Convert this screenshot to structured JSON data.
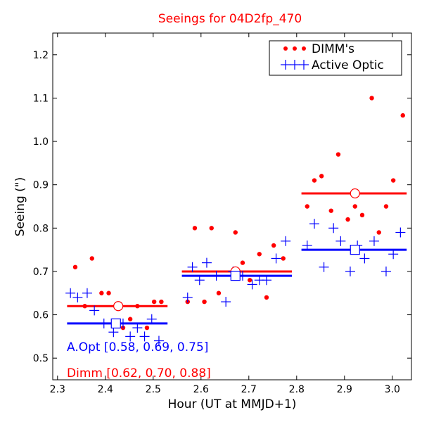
{
  "chart_data": {
    "type": "scatter",
    "title": "Seeings for 04D2fp_470",
    "xlabel": "Hour (UT at MMJD+1)",
    "ylabel": "Seeing (\")",
    "xlim": [
      2.29,
      3.04
    ],
    "ylim": [
      0.45,
      1.25
    ],
    "xticks": [
      "2.3",
      "2.4",
      "2.5",
      "2.6",
      "2.7",
      "2.8",
      "2.9",
      "3.0"
    ],
    "xtick_values": [
      2.3,
      2.4,
      2.5,
      2.6,
      2.7,
      2.8,
      2.9,
      3.0
    ],
    "yticks": [
      "0.5",
      "0.6",
      "0.7",
      "0.8",
      "0.9",
      "1.0",
      "1.1",
      "1.2"
    ],
    "ytick_values": [
      0.5,
      0.6,
      0.7,
      0.8,
      0.9,
      1.0,
      1.1,
      1.2
    ],
    "grid": false,
    "legend_position": "top-right",
    "colors": {
      "dimm": "#ff0000",
      "optic": "#0000ff",
      "title": "#ff0000"
    },
    "series": [
      {
        "name": "DIMM's",
        "marker": "dot",
        "color": "#ff0000",
        "points": [
          [
            2.337,
            0.71
          ],
          [
            2.357,
            0.62
          ],
          [
            2.372,
            0.73
          ],
          [
            2.392,
            0.65
          ],
          [
            2.407,
            0.65
          ],
          [
            2.437,
            0.57
          ],
          [
            2.452,
            0.59
          ],
          [
            2.467,
            0.62
          ],
          [
            2.487,
            0.57
          ],
          [
            2.502,
            0.63
          ],
          [
            2.517,
            0.63
          ],
          [
            2.572,
            0.63
          ],
          [
            2.587,
            0.8
          ],
          [
            2.607,
            0.63
          ],
          [
            2.622,
            0.8
          ],
          [
            2.637,
            0.65
          ],
          [
            2.672,
            0.79
          ],
          [
            2.687,
            0.72
          ],
          [
            2.702,
            0.68
          ],
          [
            2.722,
            0.74
          ],
          [
            2.737,
            0.64
          ],
          [
            2.752,
            0.76
          ],
          [
            2.772,
            0.73
          ],
          [
            2.822,
            0.85
          ],
          [
            2.837,
            0.91
          ],
          [
            2.852,
            0.92
          ],
          [
            2.872,
            0.84
          ],
          [
            2.887,
            0.97
          ],
          [
            2.907,
            0.82
          ],
          [
            2.922,
            0.85
          ],
          [
            2.937,
            0.83
          ],
          [
            2.957,
            1.1
          ],
          [
            2.972,
            0.79
          ],
          [
            2.987,
            0.85
          ],
          [
            3.002,
            0.91
          ],
          [
            3.022,
            1.06
          ]
        ]
      },
      {
        "name": "Active Optic",
        "marker": "plus",
        "color": "#0000ff",
        "points": [
          [
            2.327,
            0.65
          ],
          [
            2.342,
            0.64
          ],
          [
            2.362,
            0.65
          ],
          [
            2.377,
            0.61
          ],
          [
            2.397,
            0.58
          ],
          [
            2.417,
            0.56
          ],
          [
            2.437,
            0.58
          ],
          [
            2.452,
            0.55
          ],
          [
            2.467,
            0.57
          ],
          [
            2.482,
            0.55
          ],
          [
            2.497,
            0.59
          ],
          [
            2.512,
            0.54
          ],
          [
            2.572,
            0.64
          ],
          [
            2.582,
            0.71
          ],
          [
            2.597,
            0.68
          ],
          [
            2.612,
            0.72
          ],
          [
            2.632,
            0.69
          ],
          [
            2.652,
            0.63
          ],
          [
            2.667,
            0.7
          ],
          [
            2.687,
            0.69
          ],
          [
            2.707,
            0.67
          ],
          [
            2.722,
            0.68
          ],
          [
            2.737,
            0.68
          ],
          [
            2.757,
            0.73
          ],
          [
            2.777,
            0.77
          ],
          [
            2.822,
            0.76
          ],
          [
            2.837,
            0.81
          ],
          [
            2.857,
            0.71
          ],
          [
            2.877,
            0.8
          ],
          [
            2.892,
            0.77
          ],
          [
            2.912,
            0.7
          ],
          [
            2.927,
            0.76
          ],
          [
            2.942,
            0.73
          ],
          [
            2.962,
            0.77
          ],
          [
            2.987,
            0.7
          ],
          [
            3.002,
            0.74
          ],
          [
            3.017,
            0.79
          ]
        ]
      }
    ],
    "medians": [
      {
        "series": "DIMM's",
        "color": "#ff0000",
        "marker": "circle",
        "x": 2.427,
        "y": 0.62,
        "x_range": [
          2.32,
          2.53
        ]
      },
      {
        "series": "DIMM's",
        "color": "#ff0000",
        "marker": "circle",
        "x": 2.672,
        "y": 0.7,
        "x_range": [
          2.56,
          2.79
        ]
      },
      {
        "series": "DIMM's",
        "color": "#ff0000",
        "marker": "circle",
        "x": 2.922,
        "y": 0.88,
        "x_range": [
          2.81,
          3.03
        ]
      },
      {
        "series": "Active Optic",
        "color": "#0000ff",
        "marker": "square",
        "x": 2.422,
        "y": 0.58,
        "x_range": [
          2.32,
          2.53
        ]
      },
      {
        "series": "Active Optic",
        "color": "#0000ff",
        "marker": "square",
        "x": 2.672,
        "y": 0.69,
        "x_range": [
          2.56,
          2.79
        ]
      },
      {
        "series": "Active Optic",
        "color": "#0000ff",
        "marker": "square",
        "x": 2.922,
        "y": 0.75,
        "x_range": [
          2.81,
          3.03
        ]
      }
    ],
    "annotations": [
      {
        "text": "A.Opt [0.58, 0.69, 0.75]",
        "color": "#0000ff"
      },
      {
        "text": "Dimm [0.62, 0.70, 0.88]",
        "color": "#ff0000"
      }
    ]
  }
}
